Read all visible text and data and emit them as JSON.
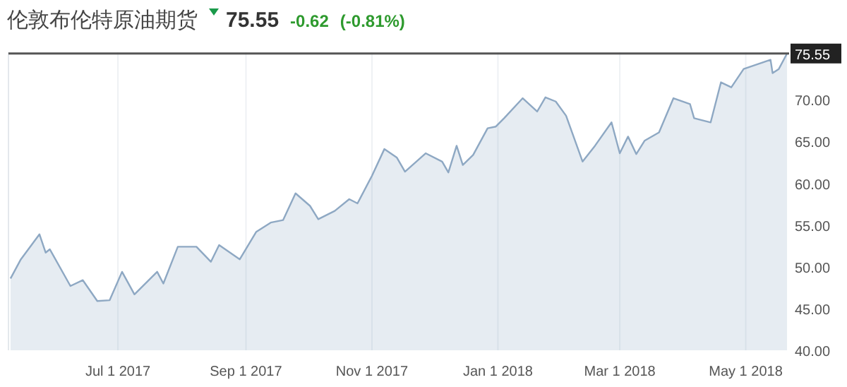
{
  "chart_data": {
    "type": "area",
    "title": "伦敦布伦特原油期货",
    "annotations": [
      "75.55",
      "-0.62",
      "(-0.81%)"
    ],
    "x": [
      "2017-05-10",
      "2017-05-15",
      "2017-05-24",
      "2017-05-27",
      "2017-05-29",
      "2017-06-08",
      "2017-06-14",
      "2017-06-21",
      "2017-06-27",
      "2017-07-03",
      "2017-07-09",
      "2017-07-20",
      "2017-07-23",
      "2017-07-30",
      "2017-08-08",
      "2017-08-15",
      "2017-08-19",
      "2017-08-29",
      "2017-09-06",
      "2017-09-13",
      "2017-09-19",
      "2017-09-25",
      "2017-10-02",
      "2017-10-06",
      "2017-10-14",
      "2017-10-21",
      "2017-10-25",
      "2017-11-01",
      "2017-11-07",
      "2017-11-13",
      "2017-11-17",
      "2017-11-27",
      "2017-12-05",
      "2017-12-08",
      "2017-12-12",
      "2017-12-15",
      "2017-12-20",
      "2017-12-27",
      "2017-12-31",
      "2018-01-04",
      "2018-01-13",
      "2018-01-20",
      "2018-01-24",
      "2018-01-29",
      "2018-02-03",
      "2018-02-11",
      "2018-02-17",
      "2018-02-25",
      "2018-03-01",
      "2018-03-05",
      "2018-03-09",
      "2018-03-13",
      "2018-03-20",
      "2018-03-27",
      "2018-04-04",
      "2018-04-06",
      "2018-04-14",
      "2018-04-19",
      "2018-04-24",
      "2018-04-30",
      "2018-05-07",
      "2018-05-13",
      "2018-05-14",
      "2018-05-17",
      "2018-05-21"
    ],
    "series": [
      {
        "color": "#8ea8c3",
        "values": [
          48.6,
          50.9,
          53.9,
          51.7,
          52.1,
          47.7,
          48.4,
          45.9,
          46.0,
          49.4,
          46.7,
          49.4,
          48.0,
          52.4,
          52.4,
          50.6,
          52.6,
          50.9,
          54.2,
          55.3,
          55.6,
          58.8,
          57.3,
          55.7,
          56.7,
          58.1,
          57.6,
          60.9,
          64.1,
          63.1,
          61.4,
          63.6,
          62.6,
          61.3,
          64.5,
          62.2,
          63.4,
          66.6,
          66.8,
          67.8,
          70.2,
          68.6,
          70.3,
          69.8,
          68.1,
          62.6,
          64.5,
          67.3,
          63.6,
          65.6,
          63.5,
          65.1,
          66.1,
          70.2,
          69.5,
          67.8,
          67.3,
          72.1,
          71.5,
          73.7,
          74.3,
          74.8,
          73.2,
          73.7,
          75.55
        ]
      }
    ],
    "xlim": [
      "2017-05-09",
      "2018-05-22"
    ],
    "xticks": [
      {
        "value": "2017-07-01",
        "label": "Jul 1 2017"
      },
      {
        "value": "2017-09-01",
        "label": "Sep 1 2017"
      },
      {
        "value": "2017-11-01",
        "label": "Nov 1 2017"
      },
      {
        "value": "2018-01-01",
        "label": "Jan 1 2018"
      },
      {
        "value": "2018-03-01",
        "label": "Mar 1 2018"
      },
      {
        "value": "2018-05-01",
        "label": "May 1 2018"
      }
    ],
    "ylim": [
      40,
      75.7
    ],
    "yticks": [
      {
        "value": 40,
        "label": "40.00"
      },
      {
        "value": 45,
        "label": "45.00"
      },
      {
        "value": 50,
        "label": "50.00"
      },
      {
        "value": 55,
        "label": "55.00"
      },
      {
        "value": 60,
        "label": "60.00"
      },
      {
        "value": 65,
        "label": "65.00"
      },
      {
        "value": 70,
        "label": "70.00"
      }
    ],
    "ref_lines": [
      {
        "axis": "y",
        "value": 75.55,
        "label": "75.55",
        "color": "#555555"
      }
    ],
    "grid": "x"
  }
}
